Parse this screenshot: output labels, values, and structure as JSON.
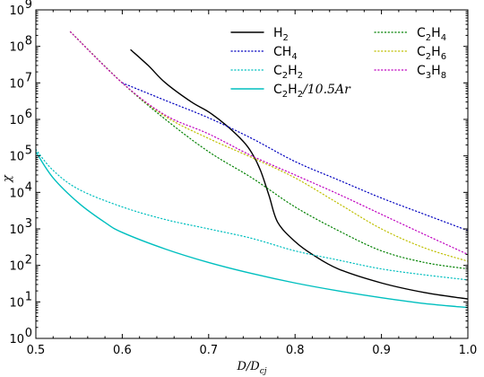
{
  "chart_data": {
    "type": "line",
    "xlabel": "D/D_cj",
    "ylabel": "χ",
    "x_range": [
      0.5,
      1.0
    ],
    "y_range": [
      1,
      1000000000
    ],
    "y_scale": "log",
    "x_ticks": [
      "0.5",
      "0.6",
      "0.7",
      "0.8",
      "0.9",
      "1.0"
    ],
    "y_ticks": [
      {
        "base": "10",
        "exp": "0"
      },
      {
        "base": "10",
        "exp": "1"
      },
      {
        "base": "10",
        "exp": "2"
      },
      {
        "base": "10",
        "exp": "3"
      },
      {
        "base": "10",
        "exp": "4"
      },
      {
        "base": "10",
        "exp": "5"
      },
      {
        "base": "10",
        "exp": "6"
      },
      {
        "base": "10",
        "exp": "7"
      },
      {
        "base": "10",
        "exp": "8"
      },
      {
        "base": "10",
        "exp": "9"
      }
    ],
    "legend_position": "top-right",
    "series": [
      {
        "name": "H2",
        "color": "#000000",
        "style": "solid",
        "points": [
          [
            0.61,
            80000000
          ],
          [
            0.63,
            30000000
          ],
          [
            0.65,
            10000000
          ],
          [
            0.68,
            3000000
          ],
          [
            0.7,
            1600000
          ],
          [
            0.72,
            700000
          ],
          [
            0.74,
            250000
          ],
          [
            0.75,
            120000
          ],
          [
            0.76,
            40000
          ],
          [
            0.77,
            8000
          ],
          [
            0.78,
            1500
          ],
          [
            0.8,
            450
          ],
          [
            0.82,
            200
          ],
          [
            0.85,
            80
          ],
          [
            0.9,
            33
          ],
          [
            0.95,
            18
          ],
          [
            1.0,
            12
          ]
        ]
      },
      {
        "name": "CH4",
        "color": "#0000bf",
        "style": "dotted",
        "points": [
          [
            0.6,
            10000000
          ],
          [
            0.65,
            3300000
          ],
          [
            0.7,
            1100000
          ],
          [
            0.75,
            300000
          ],
          [
            0.8,
            70000
          ],
          [
            0.85,
            22000
          ],
          [
            0.9,
            7000
          ],
          [
            0.95,
            2500
          ],
          [
            1.0,
            900
          ]
        ]
      },
      {
        "name": "C2H2",
        "color": "#00bfbf",
        "style": "dotted",
        "points": [
          [
            0.5,
            150000
          ],
          [
            0.52,
            40000
          ],
          [
            0.55,
            12000
          ],
          [
            0.6,
            4000
          ],
          [
            0.65,
            1800
          ],
          [
            0.7,
            1000
          ],
          [
            0.75,
            550
          ],
          [
            0.8,
            250
          ],
          [
            0.85,
            140
          ],
          [
            0.9,
            80
          ],
          [
            0.95,
            55
          ],
          [
            1.0,
            40
          ]
        ]
      },
      {
        "name": "C2H2/10.5Ar",
        "color": "#00bfbf",
        "style": "solid",
        "points": [
          [
            0.5,
            130000
          ],
          [
            0.52,
            25000
          ],
          [
            0.55,
            5000
          ],
          [
            0.58,
            1500
          ],
          [
            0.6,
            800
          ],
          [
            0.65,
            280
          ],
          [
            0.7,
            120
          ],
          [
            0.75,
            60
          ],
          [
            0.8,
            33
          ],
          [
            0.85,
            20
          ],
          [
            0.9,
            13
          ],
          [
            0.95,
            9
          ],
          [
            1.0,
            7
          ]
        ]
      },
      {
        "name": "C2H4",
        "color": "#008000",
        "style": "dotted",
        "points": [
          [
            0.54,
            250000000
          ],
          [
            0.6,
            10000000
          ],
          [
            0.65,
            1000000
          ],
          [
            0.7,
            130000
          ],
          [
            0.75,
            25000
          ],
          [
            0.8,
            4000
          ],
          [
            0.85,
            900
          ],
          [
            0.9,
            250
          ],
          [
            0.95,
            120
          ],
          [
            1.0,
            80
          ]
        ]
      },
      {
        "name": "C2H6",
        "color": "#bfbf00",
        "style": "dotted",
        "points": [
          [
            0.54,
            250000000
          ],
          [
            0.6,
            10000000
          ],
          [
            0.65,
            1200000
          ],
          [
            0.7,
            300000
          ],
          [
            0.75,
            90000
          ],
          [
            0.8,
            25000
          ],
          [
            0.85,
            5000
          ],
          [
            0.9,
            1000
          ],
          [
            0.95,
            300
          ],
          [
            1.0,
            130
          ]
        ]
      },
      {
        "name": "C3H8",
        "color": "#bf00bf",
        "style": "dotted",
        "points": [
          [
            0.54,
            250000000
          ],
          [
            0.6,
            10000000
          ],
          [
            0.65,
            1300000
          ],
          [
            0.7,
            400000
          ],
          [
            0.75,
            100000
          ],
          [
            0.8,
            30000
          ],
          [
            0.85,
            9000
          ],
          [
            0.9,
            2500
          ],
          [
            0.95,
            700
          ],
          [
            1.0,
            200
          ]
        ]
      }
    ],
    "legend": {
      "col1": [
        {
          "series": 0,
          "parts": [
            {
              "t": "H",
              "sub": false
            },
            {
              "t": "2",
              "sub": true
            }
          ]
        },
        {
          "series": 1,
          "parts": [
            {
              "t": "CH",
              "sub": false
            },
            {
              "t": "4",
              "sub": true
            }
          ]
        },
        {
          "series": 2,
          "parts": [
            {
              "t": "C",
              "sub": false
            },
            {
              "t": "2",
              "sub": true
            },
            {
              "t": "H",
              "sub": false
            },
            {
              "t": "2",
              "sub": true
            }
          ]
        },
        {
          "series": 3,
          "parts": [
            {
              "t": "C",
              "sub": false
            },
            {
              "t": "2",
              "sub": true
            },
            {
              "t": "H",
              "sub": false
            },
            {
              "t": "2",
              "sub": true
            },
            {
              "t": "/10.5",
              "sub": false,
              "ital": true
            },
            {
              "t": "Ar",
              "sub": false,
              "ital": true
            }
          ]
        }
      ],
      "col2": [
        {
          "series": 4,
          "parts": [
            {
              "t": "C",
              "sub": false
            },
            {
              "t": "2",
              "sub": true
            },
            {
              "t": "H",
              "sub": false
            },
            {
              "t": "4",
              "sub": true
            }
          ]
        },
        {
          "series": 5,
          "parts": [
            {
              "t": "C",
              "sub": false
            },
            {
              "t": "2",
              "sub": true
            },
            {
              "t": "H",
              "sub": false
            },
            {
              "t": "6",
              "sub": true
            }
          ]
        },
        {
          "series": 6,
          "parts": [
            {
              "t": "C",
              "sub": false
            },
            {
              "t": "3",
              "sub": true
            },
            {
              "t": "H",
              "sub": false
            },
            {
              "t": "8",
              "sub": true
            }
          ]
        }
      ]
    }
  }
}
